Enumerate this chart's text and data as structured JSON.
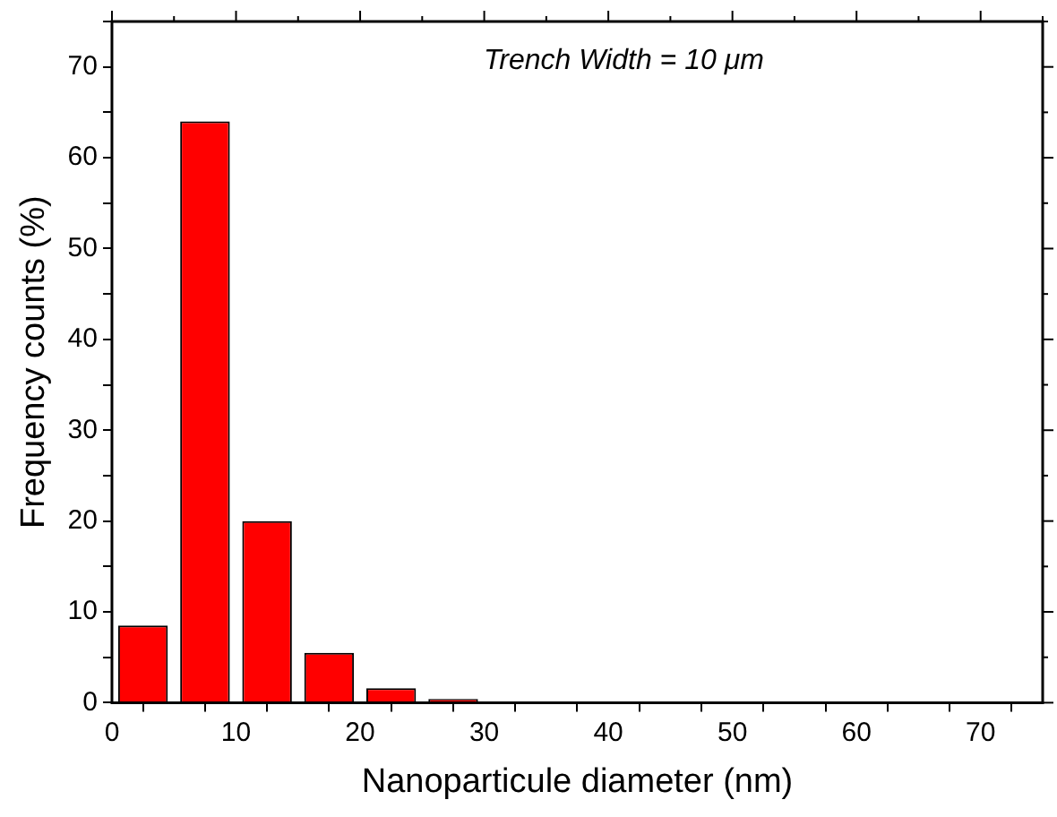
{
  "chart_data": {
    "type": "histogram",
    "annotations": [
      "Trench Width = 10 μm"
    ],
    "xlabel": "Nanoparticule diameter (nm)",
    "ylabel": "Frequency counts (%)",
    "bins": [
      0,
      5,
      10,
      15,
      20,
      25,
      30
    ],
    "values": [
      8.5,
      64,
      20,
      5.5,
      1.6,
      0.4
    ],
    "color": "#ff0000",
    "xlim": [
      0,
      75
    ],
    "ylim": [
      0,
      75
    ],
    "xticks": [
      0,
      {
        "value": 5,
        "label": null
      },
      10,
      {
        "value": 15,
        "label": null
      },
      20,
      {
        "value": 25,
        "label": null
      },
      30,
      {
        "value": 35,
        "label": null
      },
      40,
      {
        "value": 45,
        "label": null
      },
      50,
      {
        "value": 55,
        "label": null
      },
      60,
      {
        "value": 65,
        "label": null
      },
      70,
      {
        "value": 75,
        "label": null
      }
    ],
    "yticks": [
      0,
      {
        "value": 5,
        "label": null
      },
      10,
      {
        "value": 15,
        "label": null
      },
      20,
      {
        "value": 25,
        "label": null
      },
      30,
      {
        "value": 35,
        "label": null
      },
      40,
      {
        "value": 45,
        "label": null
      },
      50,
      {
        "value": 55,
        "label": null
      },
      60,
      {
        "value": 65,
        "label": null
      },
      70,
      {
        "value": 75,
        "label": null
      }
    ],
    "grid": false,
    "legend": false
  }
}
